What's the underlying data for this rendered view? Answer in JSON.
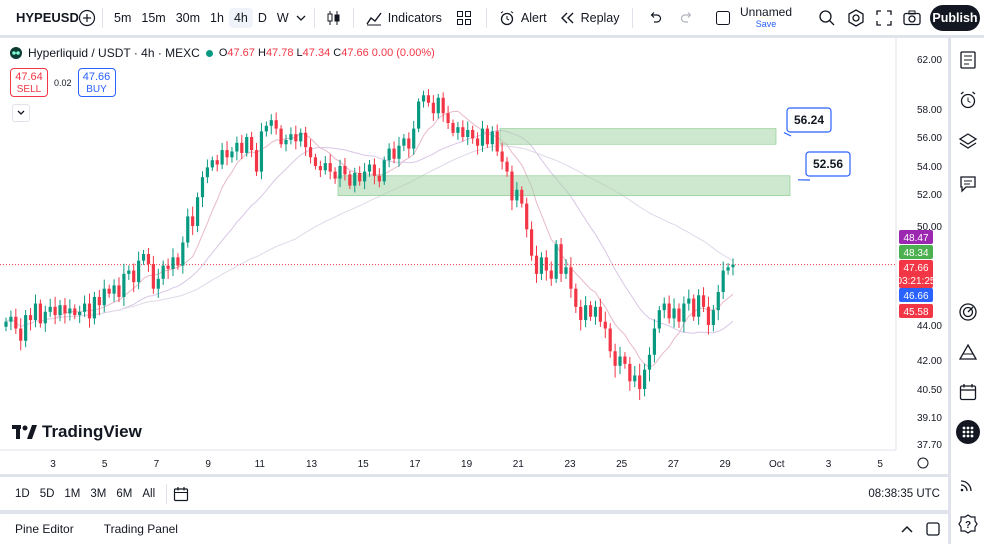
{
  "topbar": {
    "symbol": "HYPEUSD",
    "intervals": [
      "5m",
      "15m",
      "30m",
      "1h",
      "4h",
      "D",
      "W"
    ],
    "active_interval": "4h",
    "indicators_label": "Indicators",
    "alert_label": "Alert",
    "replay_label": "Replay",
    "layout_name": "Unnamed",
    "layout_save": "Save",
    "publish_label": "Publish"
  },
  "legend": {
    "title": "Hyperliquid / USDT · 4h · MEXC",
    "open_label": "O",
    "open": "47.67",
    "high_label": "H",
    "high": "47.78",
    "low_label": "L",
    "low": "47.34",
    "close_label": "C",
    "close": "47.66",
    "change": "0.00 (0.00%)",
    "sell_price": "47.64",
    "sell_label": "SELL",
    "spread": "0.02",
    "buy_price": "47.66",
    "buy_label": "BUY"
  },
  "brand": "TradingView",
  "colors": {
    "up": "#089981",
    "down": "#f23645",
    "zone": "#a5d6a7",
    "accent": "#2962ff"
  },
  "chart_data": {
    "type": "candlestick",
    "symbol": "Hyperliquid / USDT",
    "timeframe": "4h",
    "exchange": "MEXC",
    "x_ticks": [
      "3",
      "5",
      "7",
      "9",
      "11",
      "13",
      "15",
      "17",
      "19",
      "21",
      "23",
      "25",
      "27",
      "29",
      "Oct",
      "3",
      "5"
    ],
    "y_ticks": [
      "62.00",
      "58.00",
      "56.00",
      "54.00",
      "52.00",
      "50.00",
      "44.00",
      "42.00",
      "40.50",
      "39.10",
      "37.70"
    ],
    "price_labels": [
      {
        "value": "48.47",
        "color": "#9c27b0"
      },
      {
        "value": "48.34",
        "color": "#4caf50"
      },
      {
        "value": "47.66",
        "color": "#f23645",
        "sub": "03:21:25"
      },
      {
        "value": "46.66",
        "color": "#2962ff"
      },
      {
        "value": "45.58",
        "color": "#f23645"
      }
    ],
    "zones": [
      {
        "label": "56.24",
        "top": 56.6,
        "bottom": 55.5
      },
      {
        "label": "52.56",
        "top": 53.3,
        "bottom": 51.9
      }
    ],
    "last_price": 47.66,
    "closes": [
      44.2,
      44.5,
      43.8,
      43.1,
      44.6,
      44.3,
      45.3,
      44.1,
      44.8,
      45.1,
      44.6,
      45.2,
      44.7,
      45.0,
      44.6,
      44.8,
      45.3,
      44.4,
      45.7,
      45.2,
      46.2,
      45.9,
      46.4,
      45.7,
      47.1,
      47.3,
      46.6,
      47.9,
      48.3,
      47.7,
      46.2,
      46.8,
      47.6,
      47.4,
      48.1,
      47.6,
      49.0,
      50.6,
      50.0,
      51.8,
      53.2,
      53.9,
      54.4,
      54.1,
      55.1,
      54.6,
      55.0,
      55.6,
      54.9,
      56.0,
      55.1,
      53.6,
      56.4,
      56.8,
      57.2,
      56.6,
      55.5,
      55.8,
      56.2,
      55.7,
      56.3,
      55.3,
      54.6,
      54.0,
      53.7,
      54.2,
      53.6,
      53.1,
      54.0,
      53.4,
      52.6,
      53.5,
      52.9,
      53.6,
      54.1,
      53.3,
      52.9,
      54.4,
      55.2,
      54.5,
      55.4,
      55.9,
      55.2,
      56.6,
      58.6,
      59.1,
      58.5,
      57.7,
      58.9,
      57.7,
      57.0,
      56.3,
      56.7,
      56.0,
      56.5,
      55.9,
      55.4,
      56.6,
      55.5,
      56.4,
      55.0,
      54.3,
      53.6,
      51.6,
      52.3,
      51.4,
      49.8,
      48.2,
      47.1,
      48.1,
      47.3,
      46.8,
      48.9,
      47.1,
      47.5,
      46.2,
      45.1,
      44.3,
      45.2,
      44.5,
      45.1,
      44.2,
      43.8,
      42.5,
      41.7,
      42.2,
      41.8,
      40.9,
      41.2,
      40.5,
      41.5,
      42.3,
      43.8,
      44.9,
      45.3,
      44.4,
      45.0,
      44.2,
      45.3,
      45.6,
      44.5,
      45.8,
      45.1,
      44.0,
      44.9,
      46.0,
      47.3,
      47.5,
      47.66
    ]
  },
  "bottombar": {
    "ranges": [
      "1D",
      "5D",
      "1M",
      "3M",
      "6M",
      "All"
    ],
    "clock": "08:38:35 UTC"
  },
  "panels": {
    "pine_editor": "Pine Editor",
    "trading_panel": "Trading Panel"
  }
}
